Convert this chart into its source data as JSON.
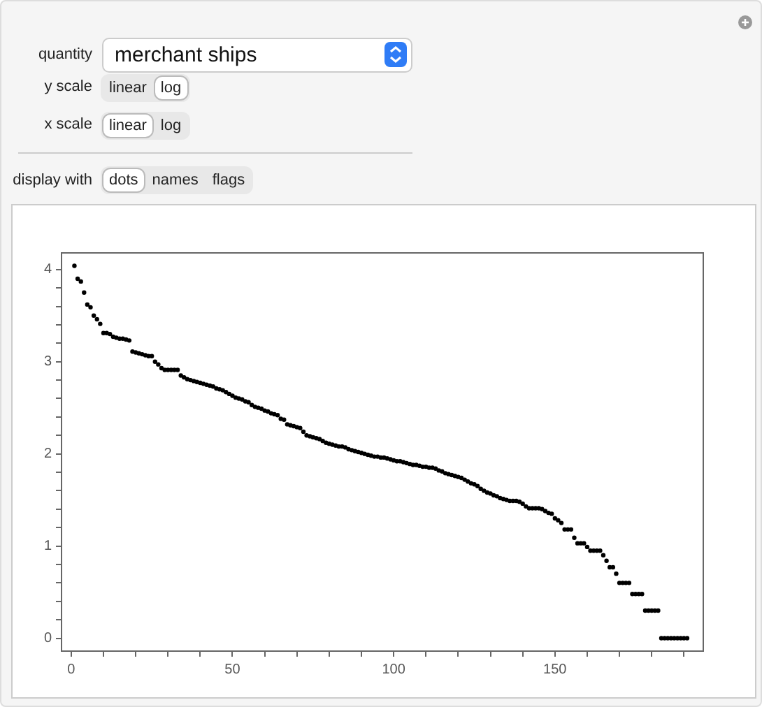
{
  "chart_data": {
    "type": "scatter",
    "annotations": [
      "quantity",
      "merchant ships",
      "y scale",
      "linear",
      "log",
      "x scale",
      "linear",
      "log",
      "display with",
      "dots",
      "names",
      "flags"
    ],
    "x": [
      1,
      2,
      3,
      4,
      5,
      6,
      7,
      8,
      9,
      10,
      11,
      12,
      13,
      14,
      15,
      16,
      17,
      18,
      19,
      20,
      21,
      22,
      23,
      24,
      25,
      26,
      27,
      28,
      29,
      30,
      31,
      32,
      33,
      34,
      35,
      36,
      37,
      38,
      39,
      40,
      41,
      42,
      43,
      44,
      45,
      46,
      47,
      48,
      49,
      50,
      51,
      52,
      53,
      54,
      55,
      56,
      57,
      58,
      59,
      60,
      61,
      62,
      63,
      64,
      65,
      66,
      67,
      68,
      69,
      70,
      71,
      72,
      73,
      74,
      75,
      76,
      77,
      78,
      79,
      80,
      81,
      82,
      83,
      84,
      85,
      86,
      87,
      88,
      89,
      90,
      91,
      92,
      93,
      94,
      95,
      96,
      97,
      98,
      99,
      100,
      101,
      102,
      103,
      104,
      105,
      106,
      107,
      108,
      109,
      110,
      111,
      112,
      113,
      114,
      115,
      116,
      117,
      118,
      119,
      120,
      121,
      122,
      123,
      124,
      125,
      126,
      127,
      128,
      129,
      130,
      131,
      132,
      133,
      134,
      135,
      136,
      137,
      138,
      139,
      140,
      141,
      142,
      143,
      144,
      145,
      146,
      147,
      148,
      149,
      150,
      151,
      152,
      153,
      154,
      155,
      156,
      157,
      158,
      159,
      160,
      161,
      162,
      163,
      164,
      165,
      166,
      167,
      168,
      169,
      170,
      171,
      172,
      173,
      174,
      175,
      176,
      177,
      178,
      179,
      180,
      181,
      182,
      183,
      184,
      185,
      186,
      187,
      188,
      189,
      190,
      191
    ],
    "values": [
      4.04,
      3.9,
      3.87,
      3.75,
      3.62,
      3.59,
      3.5,
      3.46,
      3.41,
      3.31,
      3.31,
      3.3,
      3.27,
      3.26,
      3.25,
      3.25,
      3.24,
      3.23,
      3.11,
      3.1,
      3.09,
      3.08,
      3.07,
      3.06,
      3.06,
      3.0,
      2.97,
      2.93,
      2.91,
      2.91,
      2.91,
      2.91,
      2.91,
      2.85,
      2.83,
      2.81,
      2.8,
      2.79,
      2.78,
      2.77,
      2.76,
      2.75,
      2.74,
      2.73,
      2.71,
      2.7,
      2.69,
      2.67,
      2.65,
      2.63,
      2.61,
      2.6,
      2.59,
      2.57,
      2.56,
      2.53,
      2.51,
      2.5,
      2.49,
      2.47,
      2.46,
      2.44,
      2.43,
      2.42,
      2.38,
      2.37,
      2.32,
      2.31,
      2.3,
      2.29,
      2.28,
      2.24,
      2.2,
      2.19,
      2.18,
      2.17,
      2.16,
      2.14,
      2.12,
      2.11,
      2.1,
      2.09,
      2.08,
      2.08,
      2.07,
      2.05,
      2.04,
      2.03,
      2.02,
      2.01,
      2.0,
      1.99,
      1.98,
      1.97,
      1.97,
      1.96,
      1.96,
      1.95,
      1.94,
      1.93,
      1.92,
      1.92,
      1.91,
      1.9,
      1.89,
      1.88,
      1.88,
      1.87,
      1.86,
      1.86,
      1.85,
      1.85,
      1.84,
      1.82,
      1.81,
      1.79,
      1.78,
      1.77,
      1.76,
      1.75,
      1.74,
      1.72,
      1.7,
      1.68,
      1.67,
      1.65,
      1.62,
      1.6,
      1.58,
      1.57,
      1.55,
      1.54,
      1.52,
      1.51,
      1.5,
      1.49,
      1.49,
      1.49,
      1.48,
      1.46,
      1.43,
      1.41,
      1.41,
      1.41,
      1.41,
      1.4,
      1.38,
      1.36,
      1.35,
      1.3,
      1.28,
      1.25,
      1.18,
      1.18,
      1.18,
      1.09,
      1.03,
      1.03,
      1.03,
      0.99,
      0.95,
      0.95,
      0.95,
      0.95,
      0.9,
      0.84,
      0.77,
      0.77,
      0.7,
      0.6,
      0.6,
      0.6,
      0.6,
      0.48,
      0.48,
      0.48,
      0.48,
      0.3,
      0.3,
      0.3,
      0.3,
      0.3,
      0,
      0,
      0,
      0,
      0,
      0,
      0,
      0,
      0
    ],
    "color": "#000000",
    "marker": "circle",
    "grid": false,
    "legend": false,
    "xlim": [
      -3,
      196
    ],
    "xticks": [
      0,
      {
        "value": 10,
        "label": null
      },
      {
        "value": 20,
        "label": null
      },
      {
        "value": 30,
        "label": null
      },
      {
        "value": 40,
        "label": null
      },
      50,
      {
        "value": 60,
        "label": null
      },
      {
        "value": 70,
        "label": null
      },
      {
        "value": 80,
        "label": null
      },
      {
        "value": 90,
        "label": null
      },
      100,
      {
        "value": 110,
        "label": null
      },
      {
        "value": 120,
        "label": null
      },
      {
        "value": 130,
        "label": null
      },
      {
        "value": 140,
        "label": null
      },
      150,
      {
        "value": 160,
        "label": null
      },
      {
        "value": 170,
        "label": null
      },
      {
        "value": 180,
        "label": null
      },
      {
        "value": 190,
        "label": null
      }
    ],
    "ylim": [
      -0.14,
      4.18
    ],
    "yticks": [
      0,
      {
        "value": 0.2,
        "label": null
      },
      {
        "value": 0.4,
        "label": null
      },
      {
        "value": 0.6,
        "label": null
      },
      {
        "value": 0.8,
        "label": null
      },
      1,
      {
        "value": 1.2,
        "label": null
      },
      {
        "value": 1.4,
        "label": null
      },
      {
        "value": 1.6,
        "label": null
      },
      {
        "value": 1.8,
        "label": null
      },
      2,
      {
        "value": 2.2,
        "label": null
      },
      {
        "value": 2.4,
        "label": null
      },
      {
        "value": 2.6,
        "label": null
      },
      {
        "value": 2.8,
        "label": null
      },
      3,
      {
        "value": 3.2,
        "label": null
      },
      {
        "value": 3.4,
        "label": null
      },
      {
        "value": 3.6,
        "label": null
      },
      {
        "value": 3.8,
        "label": null
      },
      4
    ]
  }
}
